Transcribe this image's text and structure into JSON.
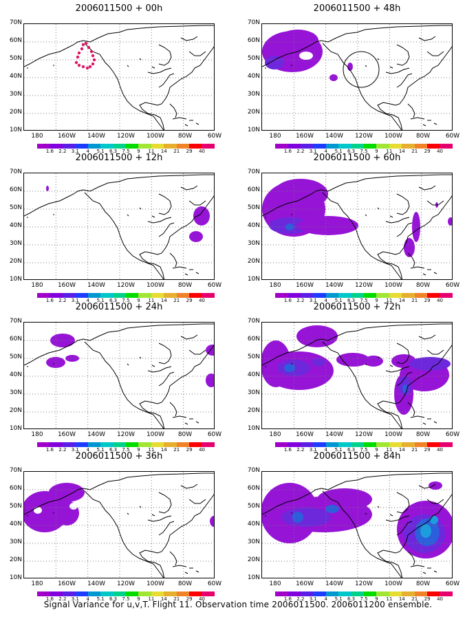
{
  "footer": "Signal Variance for u,v,T. Flight 11. Observation time 2006011500. 2006011200 ensemble.",
  "lat_labels": [
    "70N",
    "60N",
    "50N",
    "40N",
    "30N",
    "20N",
    "10N"
  ],
  "lon_labels": [
    "180",
    "160W",
    "140W",
    "120W",
    "100W",
    "80W",
    "60W"
  ],
  "colorbar": {
    "labels": [
      "1.6",
      "2.2",
      "3.1",
      "4",
      "5.1",
      "6.3",
      "7.5",
      "9",
      "11",
      "14",
      "21",
      "29",
      "40"
    ],
    "colors": [
      "#a000c8",
      "#8200dc",
      "#5a1ee6",
      "#1e3cff",
      "#0096d2",
      "#00c8c8",
      "#00d28c",
      "#00dc00",
      "#a0e632",
      "#e6dc32",
      "#e6af2d",
      "#f08228",
      "#fa0000",
      "#e6006e"
    ]
  },
  "map_colors": {
    "purple": "#9614d6",
    "violet": "#6e28dc",
    "blue": "#2c5fdc",
    "cyan": "#1c9edc"
  },
  "panels": [
    {
      "title": "2006011500 + 00h",
      "type": "00h"
    },
    {
      "title": "2006011500 + 12h",
      "type": "12h"
    },
    {
      "title": "2006011500 + 24h",
      "type": "24h"
    },
    {
      "title": "2006011500 + 36h",
      "type": "36h"
    },
    {
      "title": "2006011500 + 48h",
      "type": "48h"
    },
    {
      "title": "2006011500 + 60h",
      "type": "60h"
    },
    {
      "title": "2006011500 + 72h",
      "type": "72h"
    },
    {
      "title": "2006011500 + 84h",
      "type": "84h"
    }
  ]
}
